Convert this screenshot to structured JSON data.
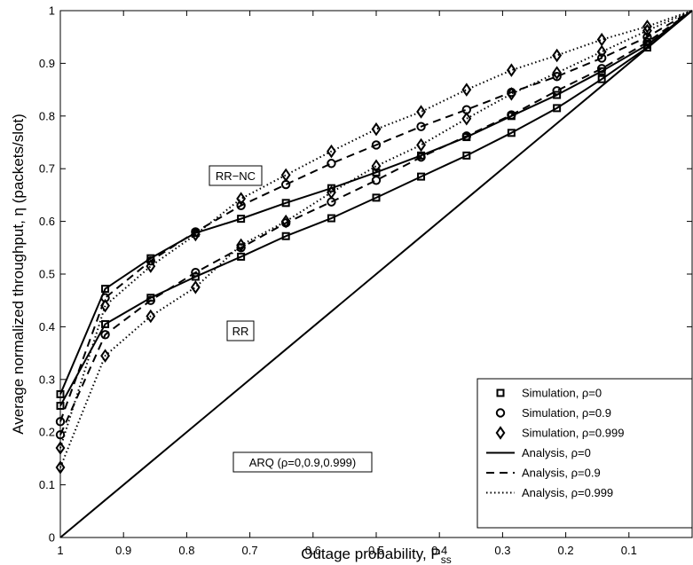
{
  "chart_data": {
    "type": "line",
    "xlabel": "Outage probability, P",
    "xlabel_sub": "ss",
    "ylabel": "Average normalized throughput, η (packets/slot)",
    "xlim": [
      1,
      0
    ],
    "ylim": [
      0,
      1
    ],
    "x_reversed": true,
    "x_ticks": [
      1,
      0.9,
      0.8,
      0.7,
      0.6,
      0.5,
      0.4,
      0.3,
      0.2,
      0.1
    ],
    "x_tick_labels": [
      "1",
      "0.9",
      "0.8",
      "0.7",
      "0.6",
      "0.5",
      "0.4",
      "0.3",
      "0.2",
      "0.1"
    ],
    "y_ticks": [
      0,
      0.1,
      0.2,
      0.3,
      0.4,
      0.5,
      0.6,
      0.7,
      0.8,
      0.9,
      1
    ],
    "y_tick_labels": [
      "0",
      "0.1",
      "0.2",
      "0.3",
      "0.4",
      "0.5",
      "0.6",
      "0.7",
      "0.8",
      "0.9",
      "1"
    ],
    "grid": false,
    "legend_position": "bottom-right",
    "legend": [
      {
        "label": "Simulation, ρ=0",
        "kind": "marker",
        "marker": "square"
      },
      {
        "label": "Simulation, ρ=0.9",
        "kind": "marker",
        "marker": "circle"
      },
      {
        "label": "Simulation, ρ=0.999",
        "kind": "marker",
        "marker": "diamond"
      },
      {
        "label": "Analysis, ρ=0",
        "kind": "line",
        "style": "solid"
      },
      {
        "label": "Analysis, ρ=0.9",
        "kind": "line",
        "style": "dashed"
      },
      {
        "label": "Analysis, ρ=0.999",
        "kind": "line",
        "style": "dotted"
      }
    ],
    "annotations": {
      "rrnc": "RR−NC",
      "rr": "RR",
      "arq": "ARQ (ρ=0,0.9,0.999)"
    },
    "x": [
      1,
      0.929,
      0.857,
      0.786,
      0.714,
      0.643,
      0.571,
      0.5,
      0.429,
      0.357,
      0.286,
      0.214,
      0.143,
      0.071,
      0
    ],
    "series": [
      {
        "group": "RR-NC",
        "rho": "0",
        "style": "solid",
        "marker": "square",
        "values": [
          0.272,
          0.472,
          0.53,
          0.578,
          0.605,
          0.635,
          0.663,
          0.693,
          0.725,
          0.76,
          0.8,
          0.84,
          0.885,
          0.935,
          1.0
        ]
      },
      {
        "group": "RR-NC",
        "rho": "0.9",
        "style": "dashed",
        "marker": "circle",
        "values": [
          0.22,
          0.455,
          0.525,
          0.58,
          0.63,
          0.67,
          0.71,
          0.745,
          0.78,
          0.812,
          0.845,
          0.875,
          0.91,
          0.95,
          1.0
        ]
      },
      {
        "group": "RR-NC",
        "rho": "0.999",
        "style": "dotted",
        "marker": "diamond",
        "values": [
          0.17,
          0.44,
          0.515,
          0.575,
          0.643,
          0.688,
          0.733,
          0.775,
          0.808,
          0.85,
          0.887,
          0.915,
          0.945,
          0.97,
          1.0
        ]
      },
      {
        "group": "RR",
        "rho": "0",
        "style": "solid",
        "marker": "square",
        "values": [
          0.25,
          0.405,
          0.455,
          0.495,
          0.533,
          0.572,
          0.606,
          0.645,
          0.685,
          0.725,
          0.768,
          0.815,
          0.87,
          0.93,
          1.0
        ]
      },
      {
        "group": "RR",
        "rho": "0.9",
        "style": "dashed",
        "marker": "circle",
        "values": [
          0.195,
          0.385,
          0.45,
          0.503,
          0.55,
          0.597,
          0.637,
          0.678,
          0.722,
          0.762,
          0.802,
          0.848,
          0.89,
          0.94,
          1.0
        ]
      },
      {
        "group": "RR",
        "rho": "0.999",
        "style": "dotted",
        "marker": "diamond",
        "values": [
          0.133,
          0.345,
          0.42,
          0.475,
          0.555,
          0.6,
          0.655,
          0.705,
          0.745,
          0.795,
          0.842,
          0.882,
          0.922,
          0.962,
          1.0
        ]
      },
      {
        "group": "ARQ",
        "rho": "0,0.9,0.999",
        "style": "solid",
        "marker": "none",
        "values": [
          0,
          0.071,
          0.143,
          0.214,
          0.286,
          0.357,
          0.429,
          0.5,
          0.571,
          0.643,
          0.714,
          0.786,
          0.857,
          0.929,
          1.0
        ]
      }
    ]
  }
}
